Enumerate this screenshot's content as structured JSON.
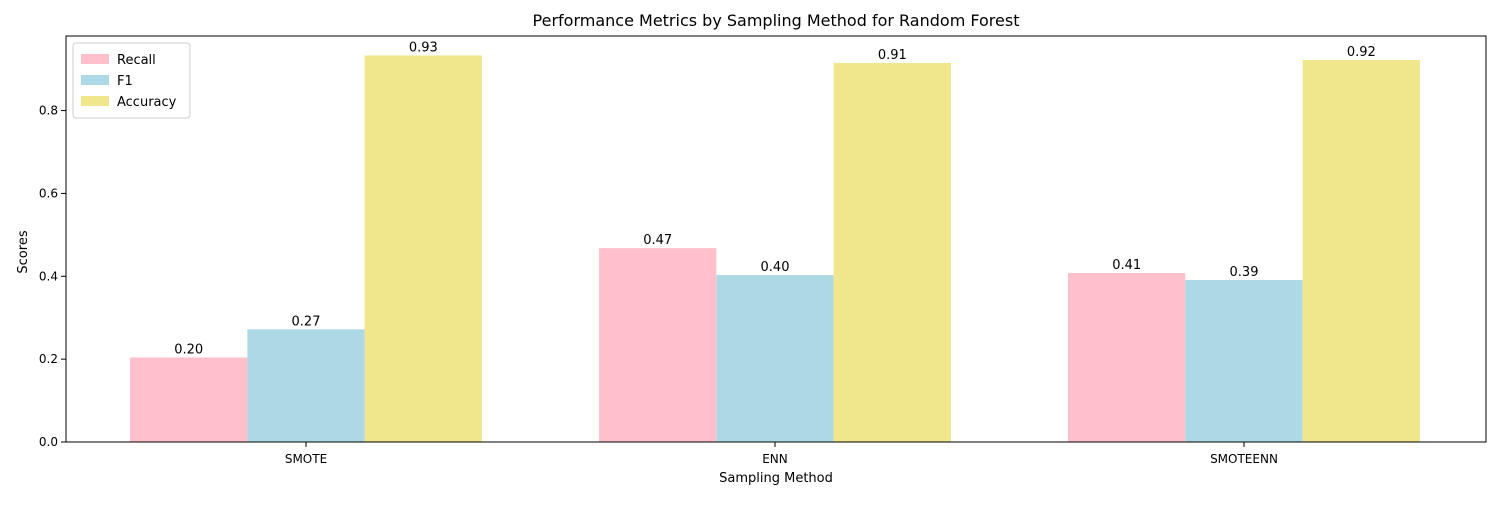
{
  "chart_data": {
    "type": "bar",
    "title": "Performance Metrics by Sampling Method for Random Forest",
    "xlabel": "Sampling Method",
    "ylabel": "Scores",
    "categories": [
      "SMOTE",
      "ENN",
      "SMOTEENN"
    ],
    "ylim": [
      0,
      0.98
    ],
    "yticks": [
      0.0,
      0.2,
      0.4,
      0.6,
      0.8
    ],
    "ytick_labels": [
      "0.0",
      "0.2",
      "0.4",
      "0.6",
      "0.8"
    ],
    "grid": false,
    "legend_position": "top-left",
    "series": [
      {
        "name": "Recall",
        "color": "#ffc0cb",
        "values": [
          0.204,
          0.468,
          0.408
        ],
        "labels": [
          "0.20",
          "0.47",
          "0.41"
        ]
      },
      {
        "name": "F1",
        "color": "#add8e6",
        "values": [
          0.272,
          0.403,
          0.391
        ],
        "labels": [
          "0.27",
          "0.40",
          "0.39"
        ]
      },
      {
        "name": "Accuracy",
        "color": "#f0e68c",
        "values": [
          0.933,
          0.915,
          0.922
        ],
        "labels": [
          "0.93",
          "0.91",
          "0.92"
        ]
      }
    ]
  }
}
